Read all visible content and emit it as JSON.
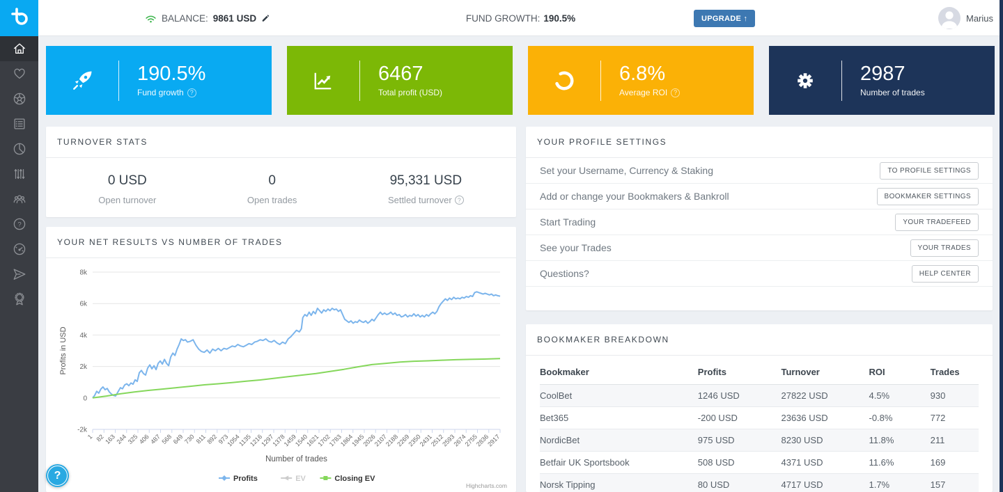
{
  "colors": {
    "accent_blue": "#09aaf2",
    "accent_green": "#7cb806",
    "accent_orange": "#fbb106",
    "accent_navy": "#1d3459",
    "link_blue": "#3d78b2"
  },
  "topbar": {
    "balance_label": "BALANCE:",
    "balance_value": "9861 USD",
    "fund_growth_label": "FUND GROWTH:",
    "fund_growth_value": "190.5%",
    "upgrade_label": "UPGRADE ↑",
    "username": "Marius"
  },
  "sidebar": {
    "icons": [
      "home",
      "heart",
      "football",
      "list",
      "pie-chart",
      "sliders",
      "community",
      "question-circle",
      "gauge",
      "paper-plane",
      "award"
    ]
  },
  "cards": [
    {
      "value": "190.5%",
      "label": "Fund growth",
      "info": true,
      "color": "#09aaf2",
      "icon": "rocket"
    },
    {
      "value": "6467",
      "label": "Total profit (USD)",
      "info": false,
      "color": "#7cb806",
      "icon": "chart-up"
    },
    {
      "value": "6.8%",
      "label": "Average ROI",
      "info": true,
      "color": "#fbb106",
      "icon": "refresh"
    },
    {
      "value": "2987",
      "label": "Number of trades",
      "info": false,
      "color": "#1d3459",
      "icon": "gear"
    }
  ],
  "turnover": {
    "title": "TURNOVER STATS",
    "stats": [
      {
        "value": "0 USD",
        "label": "Open turnover",
        "info": false
      },
      {
        "value": "0",
        "label": "Open trades",
        "info": false
      },
      {
        "value": "95,331 USD",
        "label": "Settled turnover",
        "info": true
      }
    ]
  },
  "chart_panel": {
    "title": "YOUR NET RESULTS VS NUMBER OF TRADES"
  },
  "chart_data": {
    "type": "line",
    "xlabel": "Number of trades",
    "ylabel": "Profits in USD",
    "ylim": [
      -2000,
      8000
    ],
    "ytick_labels": [
      "8k",
      "6k",
      "4k",
      "2k",
      "0",
      "-2k"
    ],
    "ytick_values": [
      8000,
      6000,
      4000,
      2000,
      0,
      -2000
    ],
    "xticks": [
      1,
      82,
      163,
      244,
      325,
      406,
      487,
      568,
      649,
      730,
      811,
      892,
      973,
      1054,
      1135,
      1216,
      1297,
      1378,
      1459,
      1540,
      1621,
      1702,
      1783,
      1864,
      1945,
      2026,
      2107,
      2188,
      2269,
      2350,
      2431,
      2512,
      2593,
      2674,
      2755,
      2836,
      2917
    ],
    "legend": [
      {
        "name": "Profits",
        "color": "#7cb5ec",
        "enabled": true,
        "marker": "diamond"
      },
      {
        "name": "EV",
        "color": "#cccccc",
        "enabled": false,
        "marker": "triangle"
      },
      {
        "name": "Closing EV",
        "color": "#85d75b",
        "enabled": true,
        "marker": "square"
      }
    ],
    "credit": "Highcharts.com",
    "series": [
      {
        "name": "Profits",
        "color": "#7cb5ec",
        "points": [
          [
            1,
            0
          ],
          [
            15,
            150
          ],
          [
            30,
            420
          ],
          [
            45,
            300
          ],
          [
            60,
            560
          ],
          [
            75,
            700
          ],
          [
            90,
            520
          ],
          [
            105,
            600
          ],
          [
            120,
            380
          ],
          [
            135,
            250
          ],
          [
            150,
            160
          ],
          [
            165,
            120
          ],
          [
            185,
            420
          ],
          [
            200,
            650
          ],
          [
            215,
            580
          ],
          [
            230,
            820
          ],
          [
            245,
            900
          ],
          [
            260,
            780
          ],
          [
            275,
            950
          ],
          [
            290,
            870
          ],
          [
            305,
            1150
          ],
          [
            320,
            1050
          ],
          [
            335,
            1600
          ],
          [
            350,
            1750
          ],
          [
            365,
            1550
          ],
          [
            380,
            1450
          ],
          [
            395,
            1900
          ],
          [
            410,
            2100
          ],
          [
            425,
            1850
          ],
          [
            440,
            2050
          ],
          [
            455,
            1800
          ],
          [
            470,
            2200
          ],
          [
            485,
            2350
          ],
          [
            500,
            2150
          ],
          [
            515,
            2450
          ],
          [
            530,
            2200
          ],
          [
            545,
            2050
          ],
          [
            560,
            2600
          ],
          [
            575,
            2850
          ],
          [
            590,
            2700
          ],
          [
            605,
            3100
          ],
          [
            620,
            3400
          ],
          [
            635,
            3750
          ],
          [
            650,
            3650
          ],
          [
            665,
            3700
          ],
          [
            680,
            3550
          ],
          [
            700,
            3600
          ],
          [
            720,
            3700
          ],
          [
            740,
            3350
          ],
          [
            760,
            3100
          ],
          [
            780,
            2950
          ],
          [
            800,
            2900
          ],
          [
            820,
            3050
          ],
          [
            840,
            2850
          ],
          [
            860,
            3100
          ],
          [
            880,
            3000
          ],
          [
            900,
            3150
          ],
          [
            920,
            3000
          ],
          [
            940,
            3150
          ],
          [
            960,
            3100
          ],
          [
            980,
            3200
          ],
          [
            1000,
            3300
          ],
          [
            1020,
            3250
          ],
          [
            1040,
            3400
          ],
          [
            1060,
            3300
          ],
          [
            1080,
            3250
          ],
          [
            1100,
            3350
          ],
          [
            1120,
            3450
          ],
          [
            1140,
            3400
          ],
          [
            1160,
            3550
          ],
          [
            1180,
            3600
          ],
          [
            1200,
            3700
          ],
          [
            1220,
            3650
          ],
          [
            1240,
            3750
          ],
          [
            1260,
            3600
          ],
          [
            1280,
            3550
          ],
          [
            1300,
            3650
          ],
          [
            1320,
            3500
          ],
          [
            1340,
            3400
          ],
          [
            1360,
            3550
          ],
          [
            1380,
            3450
          ],
          [
            1400,
            3750
          ],
          [
            1420,
            3900
          ],
          [
            1440,
            4100
          ],
          [
            1460,
            4300
          ],
          [
            1480,
            4200
          ],
          [
            1495,
            4400
          ],
          [
            1505,
            5100
          ],
          [
            1520,
            5300
          ],
          [
            1535,
            5200
          ],
          [
            1550,
            5450
          ],
          [
            1565,
            5250
          ],
          [
            1580,
            5500
          ],
          [
            1595,
            5350
          ],
          [
            1610,
            5700
          ],
          [
            1625,
            5550
          ],
          [
            1640,
            5400
          ],
          [
            1655,
            5600
          ],
          [
            1670,
            5500
          ],
          [
            1685,
            5650
          ],
          [
            1700,
            5550
          ],
          [
            1715,
            5700
          ],
          [
            1730,
            5600
          ],
          [
            1745,
            5650
          ],
          [
            1760,
            5500
          ],
          [
            1775,
            5600
          ],
          [
            1790,
            5300
          ],
          [
            1805,
            5000
          ],
          [
            1820,
            4900
          ],
          [
            1835,
            4800
          ],
          [
            1850,
            4900
          ],
          [
            1865,
            4750
          ],
          [
            1880,
            4850
          ],
          [
            1895,
            4800
          ],
          [
            1910,
            4950
          ],
          [
            1925,
            4850
          ],
          [
            1940,
            4800
          ],
          [
            1955,
            4900
          ],
          [
            1970,
            4750
          ],
          [
            1985,
            4850
          ],
          [
            2000,
            5000
          ],
          [
            2015,
            4900
          ],
          [
            2030,
            5100
          ],
          [
            2045,
            5300
          ],
          [
            2060,
            5450
          ],
          [
            2075,
            5300
          ],
          [
            2090,
            5400
          ],
          [
            2105,
            5300
          ],
          [
            2120,
            5350
          ],
          [
            2135,
            5450
          ],
          [
            2150,
            5300
          ],
          [
            2165,
            5400
          ],
          [
            2180,
            5250
          ],
          [
            2195,
            5300
          ],
          [
            2210,
            5150
          ],
          [
            2225,
            5200
          ],
          [
            2240,
            5300
          ],
          [
            2255,
            5150
          ],
          [
            2270,
            5250
          ],
          [
            2285,
            5200
          ],
          [
            2300,
            5350
          ],
          [
            2315,
            5200
          ],
          [
            2330,
            5300
          ],
          [
            2345,
            5150
          ],
          [
            2360,
            5250
          ],
          [
            2375,
            5150
          ],
          [
            2390,
            5300
          ],
          [
            2405,
            5200
          ],
          [
            2420,
            5350
          ],
          [
            2435,
            5450
          ],
          [
            2450,
            5350
          ],
          [
            2465,
            5500
          ],
          [
            2480,
            5800
          ],
          [
            2495,
            6000
          ],
          [
            2510,
            6150
          ],
          [
            2525,
            6300
          ],
          [
            2540,
            6200
          ],
          [
            2555,
            6350
          ],
          [
            2570,
            6250
          ],
          [
            2585,
            6400
          ],
          [
            2600,
            6300
          ],
          [
            2615,
            6350
          ],
          [
            2630,
            6300
          ],
          [
            2645,
            6400
          ],
          [
            2660,
            6350
          ],
          [
            2675,
            6450
          ],
          [
            2690,
            6400
          ],
          [
            2705,
            6500
          ],
          [
            2720,
            6450
          ],
          [
            2735,
            6700
          ],
          [
            2750,
            6750
          ],
          [
            2765,
            6700
          ],
          [
            2780,
            6650
          ],
          [
            2795,
            6600
          ],
          [
            2810,
            6650
          ],
          [
            2825,
            6600
          ],
          [
            2840,
            6550
          ],
          [
            2855,
            6600
          ],
          [
            2870,
            6500
          ],
          [
            2885,
            6550
          ],
          [
            2900,
            6500
          ],
          [
            2917,
            6467
          ]
        ]
      },
      {
        "name": "Closing EV",
        "color": "#85d75b",
        "points": [
          [
            1,
            0
          ],
          [
            100,
            120
          ],
          [
            200,
            260
          ],
          [
            300,
            380
          ],
          [
            400,
            480
          ],
          [
            500,
            560
          ],
          [
            600,
            650
          ],
          [
            700,
            740
          ],
          [
            800,
            830
          ],
          [
            900,
            900
          ],
          [
            1000,
            980
          ],
          [
            1100,
            1060
          ],
          [
            1200,
            1140
          ],
          [
            1300,
            1250
          ],
          [
            1400,
            1350
          ],
          [
            1500,
            1450
          ],
          [
            1600,
            1550
          ],
          [
            1700,
            1680
          ],
          [
            1800,
            1820
          ],
          [
            1900,
            1980
          ],
          [
            2000,
            2120
          ],
          [
            2100,
            2200
          ],
          [
            2200,
            2280
          ],
          [
            2300,
            2330
          ],
          [
            2400,
            2360
          ],
          [
            2500,
            2400
          ],
          [
            2600,
            2430
          ],
          [
            2700,
            2450
          ],
          [
            2800,
            2470
          ],
          [
            2917,
            2500
          ]
        ]
      }
    ]
  },
  "profile_settings": {
    "title": "YOUR PROFILE SETTINGS",
    "rows": [
      {
        "label": "Set your Username, Currency & Staking",
        "button": "TO PROFILE SETTINGS"
      },
      {
        "label": "Add or change your Bookmakers & Bankroll",
        "button": "BOOKMAKER SETTINGS"
      },
      {
        "label": "Start Trading",
        "button": "YOUR TRADEFEED"
      },
      {
        "label": "See your Trades",
        "button": "YOUR TRADES"
      },
      {
        "label": "Questions?",
        "button": "HELP CENTER"
      }
    ]
  },
  "bookmaker_breakdown": {
    "title": "BOOKMAKER BREAKDOWN",
    "columns": [
      "Bookmaker",
      "Profits",
      "Turnover",
      "ROI",
      "Trades"
    ],
    "rows": [
      [
        "CoolBet",
        "1246 USD",
        "27822 USD",
        "4.5%",
        "930"
      ],
      [
        "Bet365",
        "-200 USD",
        "23636 USD",
        "-0.8%",
        "772"
      ],
      [
        "NordicBet",
        "975 USD",
        "8230 USD",
        "11.8%",
        "211"
      ],
      [
        "Betfair UK Sportsbook",
        "508 USD",
        "4371 USD",
        "11.6%",
        "169"
      ],
      [
        "Norsk Tipping",
        "80 USD",
        "4717 USD",
        "1.7%",
        "157"
      ]
    ]
  },
  "help_button": {
    "label": "?"
  }
}
